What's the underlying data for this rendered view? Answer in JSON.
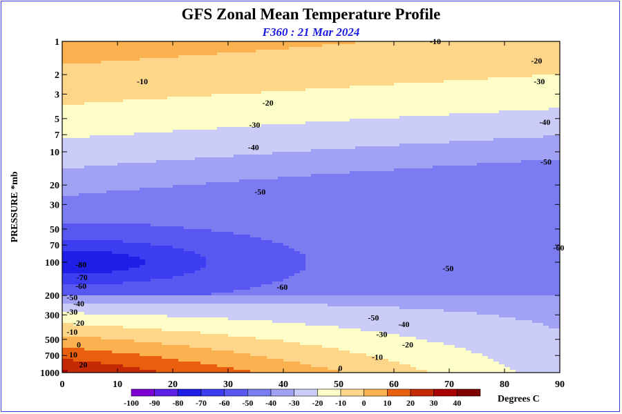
{
  "chart_data": {
    "type": "heatmap",
    "title": "GFS Zonal Mean Temperature Profile",
    "subtitle": "F360 : 21 Mar 2024",
    "xlabel": "",
    "ylabel": "PRESSURE *mb",
    "x_ticks": [
      0,
      10,
      20,
      30,
      40,
      50,
      60,
      70,
      80,
      90
    ],
    "xlim": [
      0,
      90
    ],
    "y_ticks": [
      1,
      2,
      3,
      5,
      7,
      10,
      20,
      30,
      50,
      70,
      100,
      200,
      300,
      500,
      700,
      1000
    ],
    "ylim": [
      1000,
      1
    ],
    "y_scale": "log",
    "colorbar": {
      "levels": [
        -100,
        -90,
        -80,
        -70,
        -60,
        -50,
        -40,
        -30,
        -20,
        -10,
        0,
        10,
        20,
        30,
        40
      ],
      "colors": [
        "#7f00d6",
        "#5a1ee6",
        "#1e1ee6",
        "#3c3cf0",
        "#5858f0",
        "#7c7cf2",
        "#a2a2f4",
        "#ccccf8",
        "#fdfdc8",
        "#fdd68a",
        "#fbb150",
        "#e8600e",
        "#c42a06",
        "#a80000",
        "#7f0000",
        "#8b6c2a"
      ],
      "unit": "Degrees C"
    },
    "contour_labels": [
      {
        "text": "-10",
        "x": 67.5,
        "p": 1.0
      },
      {
        "text": "-20",
        "x": 85.8,
        "p": 1.5
      },
      {
        "text": "-30",
        "x": 86.3,
        "p": 2.3
      },
      {
        "text": "-40",
        "x": 87.3,
        "p": 5.4
      },
      {
        "text": "-50",
        "x": 87.5,
        "p": 12.3
      },
      {
        "text": "-10",
        "x": 14.5,
        "p": 2.3
      },
      {
        "text": "-20",
        "x": 37.2,
        "p": 3.6
      },
      {
        "text": "-30",
        "x": 34.8,
        "p": 5.7
      },
      {
        "text": "-40",
        "x": 34.6,
        "p": 9.1
      },
      {
        "text": "-50",
        "x": 35.8,
        "p": 23.1
      },
      {
        "text": "-60",
        "x": 89.8,
        "p": 74.0
      },
      {
        "text": "-50",
        "x": 69.8,
        "p": 114.0
      },
      {
        "text": "-60",
        "x": 39.8,
        "p": 168.0
      },
      {
        "text": "-80",
        "x": 3.4,
        "p": 105.0
      },
      {
        "text": "-70",
        "x": 3.6,
        "p": 137.0
      },
      {
        "text": "-60",
        "x": 3.4,
        "p": 164.0
      },
      {
        "text": "-50",
        "x": 1.8,
        "p": 208.0
      },
      {
        "text": "-40",
        "x": 3.0,
        "p": 237.0
      },
      {
        "text": "-30",
        "x": 1.8,
        "p": 282.0
      },
      {
        "text": "-20",
        "x": 3.0,
        "p": 354.0
      },
      {
        "text": "-10",
        "x": 1.8,
        "p": 429.0
      },
      {
        "text": "0",
        "x": 3.0,
        "p": 560.0
      },
      {
        "text": "10",
        "x": 2.0,
        "p": 690.0
      },
      {
        "text": "20",
        "x": 3.8,
        "p": 850.0
      },
      {
        "text": "-50",
        "x": 56.3,
        "p": 318.0
      },
      {
        "text": "-40",
        "x": 61.8,
        "p": 365.0
      },
      {
        "text": "-30",
        "x": 57.8,
        "p": 451.0
      },
      {
        "text": "-20",
        "x": 62.5,
        "p": 560.0
      },
      {
        "text": "-10",
        "x": 57.0,
        "p": 722.0
      },
      {
        "text": "0",
        "x": 50.3,
        "p": 910.0
      }
    ]
  }
}
